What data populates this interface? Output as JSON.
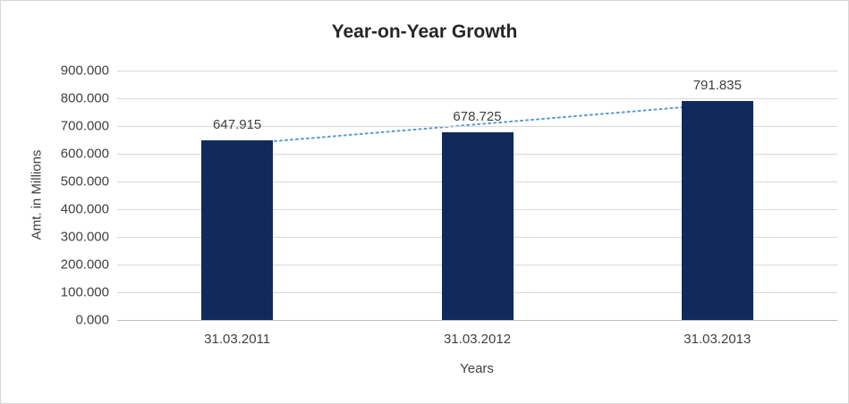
{
  "chart_data": {
    "type": "bar",
    "title": "Year-on-Year Growth",
    "categories": [
      "31.03.2011",
      "31.03.2012",
      "31.03.2013"
    ],
    "values": [
      647.915,
      678.725,
      791.835
    ],
    "data_labels": [
      "647.915",
      "678.725",
      "791.835"
    ],
    "xlabel": "Years",
    "ylabel": "Amt. in Millions",
    "ylim": [
      0,
      900
    ],
    "y_tick_step": 100,
    "y_tick_labels": [
      "0.000",
      "100.000",
      "200.000",
      "300.000",
      "400.000",
      "500.000",
      "600.000",
      "700.000",
      "800.000",
      "900.000"
    ],
    "grid": true,
    "legend": "none",
    "bar_color": "#12295b",
    "trendline": {
      "type": "linear",
      "style": "dotted",
      "color": "#5b9bd5"
    }
  }
}
